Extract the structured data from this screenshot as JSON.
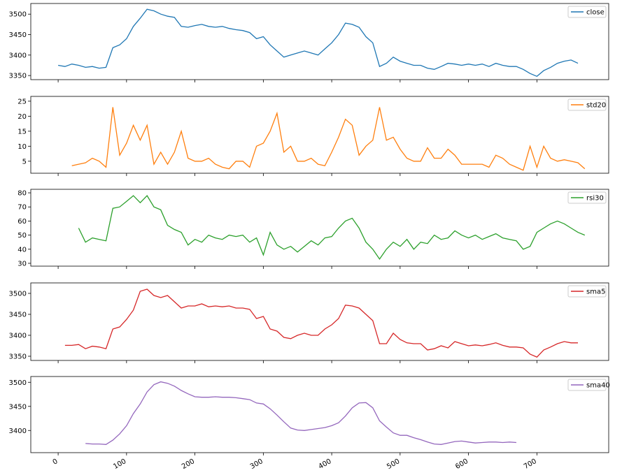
{
  "chart_data": [
    {
      "type": "line",
      "legend": "upper right",
      "xlim": [
        -40,
        805
      ],
      "ylim": [
        3340,
        3526
      ],
      "yticks": [
        3350,
        3400,
        3450,
        3500
      ],
      "x": [
        0,
        10,
        20,
        30,
        40,
        50,
        60,
        70,
        80,
        90,
        100,
        110,
        120,
        130,
        140,
        150,
        160,
        170,
        180,
        190,
        200,
        210,
        220,
        230,
        240,
        250,
        260,
        270,
        280,
        290,
        300,
        310,
        320,
        330,
        340,
        350,
        360,
        370,
        380,
        390,
        400,
        410,
        420,
        430,
        440,
        450,
        460,
        470,
        480,
        490,
        500,
        510,
        520,
        530,
        540,
        550,
        560,
        570,
        580,
        590,
        600,
        610,
        620,
        630,
        640,
        650,
        660,
        670,
        680,
        690,
        700,
        710,
        720,
        730,
        740,
        750,
        760
      ],
      "series": [
        {
          "name": "close",
          "color": "#1f77b4",
          "values": [
            3375,
            3372,
            3378,
            3375,
            3370,
            3372,
            3368,
            3370,
            3418,
            3425,
            3440,
            3470,
            3490,
            3512,
            3508,
            3500,
            3495,
            3492,
            3470,
            3468,
            3472,
            3475,
            3470,
            3468,
            3470,
            3465,
            3462,
            3460,
            3455,
            3440,
            3445,
            3425,
            3410,
            3395,
            3400,
            3405,
            3410,
            3405,
            3400,
            3415,
            3430,
            3450,
            3478,
            3475,
            3468,
            3445,
            3430,
            3372,
            3380,
            3395,
            3385,
            3380,
            3375,
            3375,
            3368,
            3365,
            3372,
            3380,
            3378,
            3375,
            3378,
            3375,
            3378,
            3372,
            3380,
            3375,
            3372,
            3372,
            3365,
            3355,
            3348,
            3362,
            3370,
            3380,
            3385,
            3388,
            3380
          ]
        }
      ]
    },
    {
      "type": "line",
      "legend": "upper right",
      "xlim": [
        -40,
        805
      ],
      "ylim": [
        1,
        26.6
      ],
      "yticks": [
        5,
        10,
        15,
        20,
        25
      ],
      "x": [
        20,
        30,
        40,
        50,
        60,
        70,
        80,
        90,
        100,
        110,
        120,
        130,
        140,
        150,
        160,
        170,
        180,
        190,
        200,
        210,
        220,
        230,
        240,
        250,
        260,
        270,
        280,
        290,
        300,
        310,
        320,
        330,
        340,
        350,
        360,
        370,
        380,
        390,
        400,
        410,
        420,
        430,
        440,
        450,
        460,
        470,
        480,
        490,
        500,
        510,
        520,
        530,
        540,
        550,
        560,
        570,
        580,
        590,
        600,
        610,
        620,
        630,
        640,
        650,
        660,
        670,
        680,
        690,
        700,
        710,
        720,
        730,
        740,
        750,
        760,
        770
      ],
      "series": [
        {
          "name": "std20",
          "color": "#ff7f0e",
          "values": [
            3.5,
            4,
            4.5,
            6,
            5,
            3,
            23,
            7,
            11,
            17,
            12,
            17,
            4,
            8,
            4,
            8,
            15,
            6,
            5,
            5,
            6,
            4,
            3,
            2.5,
            5,
            5,
            3,
            10,
            11,
            15,
            21,
            8,
            10,
            5,
            5,
            6,
            4,
            3.5,
            8,
            13,
            19,
            17,
            7,
            10,
            12,
            23,
            12,
            13,
            9,
            6,
            5,
            5,
            9.5,
            6,
            6,
            9,
            7,
            4,
            4,
            4,
            4,
            3,
            7,
            6,
            4,
            3,
            2,
            10,
            3,
            10,
            6,
            5,
            5.5,
            5,
            4.5,
            2.5
          ]
        }
      ]
    },
    {
      "type": "line",
      "legend": "upper right",
      "xlim": [
        -40,
        805
      ],
      "ylim": [
        28,
        82.5
      ],
      "yticks": [
        30,
        40,
        50,
        60,
        70,
        80
      ],
      "x": [
        30,
        40,
        50,
        60,
        70,
        80,
        90,
        100,
        110,
        120,
        130,
        140,
        150,
        160,
        170,
        180,
        190,
        200,
        210,
        220,
        230,
        240,
        250,
        260,
        270,
        280,
        290,
        300,
        310,
        320,
        330,
        340,
        350,
        360,
        370,
        380,
        390,
        400,
        410,
        420,
        430,
        440,
        450,
        460,
        470,
        480,
        490,
        500,
        510,
        520,
        530,
        540,
        550,
        560,
        570,
        580,
        590,
        600,
        610,
        620,
        630,
        640,
        650,
        660,
        670,
        680,
        690,
        700,
        710,
        720,
        730,
        740,
        750,
        760,
        770
      ],
      "series": [
        {
          "name": "rsi30",
          "color": "#2ca02c",
          "values": [
            55,
            45,
            48,
            47,
            46,
            69,
            70,
            74,
            78,
            73,
            78,
            70,
            68,
            57,
            54,
            52,
            43,
            47,
            45,
            50,
            48,
            47,
            50,
            49,
            50,
            45,
            48,
            36,
            52,
            43,
            40,
            42,
            38,
            42,
            46,
            43,
            48,
            49,
            55,
            60,
            62,
            55,
            45,
            40,
            33,
            40,
            45,
            42,
            47,
            40,
            45,
            44,
            50,
            47,
            48,
            53,
            50,
            48,
            50,
            47,
            49,
            51,
            48,
            47,
            46,
            40,
            42,
            52,
            55,
            58,
            60,
            58,
            55,
            52,
            50
          ]
        }
      ]
    },
    {
      "type": "line",
      "legend": "upper right",
      "xlim": [
        -40,
        805
      ],
      "ylim": [
        3340,
        3525
      ],
      "yticks": [
        3350,
        3400,
        3450,
        3500
      ],
      "x": [
        10,
        20,
        30,
        40,
        50,
        60,
        70,
        80,
        90,
        100,
        110,
        120,
        130,
        140,
        150,
        160,
        170,
        180,
        190,
        200,
        210,
        220,
        230,
        240,
        250,
        260,
        270,
        280,
        290,
        300,
        310,
        320,
        330,
        340,
        350,
        360,
        370,
        380,
        390,
        400,
        410,
        420,
        430,
        440,
        450,
        460,
        470,
        480,
        490,
        500,
        510,
        520,
        530,
        540,
        550,
        560,
        570,
        580,
        590,
        600,
        610,
        620,
        630,
        640,
        650,
        660,
        670,
        680,
        690,
        700,
        710,
        720,
        730,
        740,
        750,
        760
      ],
      "series": [
        {
          "name": "sma5",
          "color": "#d62728",
          "values": [
            3376,
            3376,
            3378,
            3368,
            3374,
            3372,
            3368,
            3415,
            3420,
            3438,
            3460,
            3505,
            3510,
            3495,
            3490,
            3495,
            3480,
            3465,
            3470,
            3470,
            3475,
            3468,
            3470,
            3468,
            3470,
            3465,
            3465,
            3462,
            3440,
            3445,
            3415,
            3410,
            3395,
            3392,
            3400,
            3405,
            3400,
            3400,
            3415,
            3425,
            3440,
            3472,
            3470,
            3465,
            3450,
            3435,
            3380,
            3380,
            3405,
            3390,
            3382,
            3380,
            3380,
            3365,
            3368,
            3375,
            3370,
            3385,
            3380,
            3375,
            3377,
            3375,
            3378,
            3382,
            3376,
            3372,
            3372,
            3370,
            3355,
            3348,
            3365,
            3372,
            3380,
            3385,
            3382,
            3382
          ]
        }
      ]
    },
    {
      "type": "line",
      "legend": "upper right",
      "xlim": [
        -40,
        805
      ],
      "ylim": [
        3354,
        3512
      ],
      "yticks": [
        3400,
        3450,
        3500
      ],
      "xticks": [
        0,
        100,
        200,
        300,
        400,
        500,
        600,
        700
      ],
      "x": [
        40,
        50,
        60,
        70,
        80,
        90,
        100,
        110,
        120,
        130,
        140,
        150,
        160,
        170,
        180,
        190,
        200,
        210,
        220,
        230,
        240,
        250,
        260,
        270,
        280,
        290,
        300,
        310,
        320,
        330,
        340,
        350,
        360,
        370,
        380,
        390,
        400,
        410,
        420,
        430,
        440,
        450,
        460,
        470,
        480,
        490,
        500,
        510,
        520,
        530,
        540,
        550,
        560,
        570,
        580,
        590,
        600,
        610,
        620,
        630,
        640,
        650,
        660,
        670
      ],
      "series": [
        {
          "name": "sma40",
          "color": "#9467bd",
          "values": [
            3373,
            3372,
            3372,
            3371,
            3380,
            3393,
            3410,
            3435,
            3455,
            3480,
            3495,
            3501,
            3498,
            3492,
            3483,
            3476,
            3470,
            3469,
            3469,
            3470,
            3469,
            3469,
            3468,
            3466,
            3464,
            3457,
            3455,
            3445,
            3432,
            3418,
            3405,
            3401,
            3400,
            3402,
            3404,
            3406,
            3410,
            3416,
            3430,
            3447,
            3457,
            3458,
            3447,
            3420,
            3407,
            3395,
            3390,
            3390,
            3385,
            3381,
            3376,
            3372,
            3371,
            3374,
            3377,
            3378,
            3376,
            3374,
            3375,
            3376,
            3376,
            3375,
            3376,
            3375
          ]
        }
      ]
    }
  ]
}
